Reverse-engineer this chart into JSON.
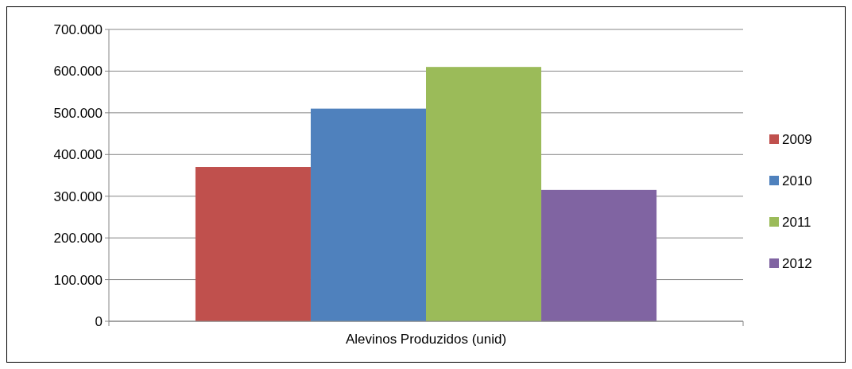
{
  "chart_data": {
    "type": "bar",
    "categories": [
      "Alevinos Produzidos (unid)"
    ],
    "series": [
      {
        "name": "2009",
        "color": "#c0504d",
        "values": [
          370000
        ]
      },
      {
        "name": "2010",
        "color": "#4f81bd",
        "values": [
          510000
        ]
      },
      {
        "name": "2011",
        "color": "#9bbb59",
        "values": [
          610000
        ]
      },
      {
        "name": "2012",
        "color": "#8064a2",
        "values": [
          315000
        ]
      }
    ],
    "ylim": [
      0,
      700000
    ],
    "yticks": [
      {
        "value": 0,
        "label": "0"
      },
      {
        "value": 100000,
        "label": "100.000"
      },
      {
        "value": 200000,
        "label": "200.000"
      },
      {
        "value": 300000,
        "label": "300.000"
      },
      {
        "value": 400000,
        "label": "400.000"
      },
      {
        "value": 500000,
        "label": "500.000"
      },
      {
        "value": 600000,
        "label": "600.000"
      },
      {
        "value": 700000,
        "label": "700.000"
      }
    ],
    "grid": "y",
    "legend": "right"
  }
}
